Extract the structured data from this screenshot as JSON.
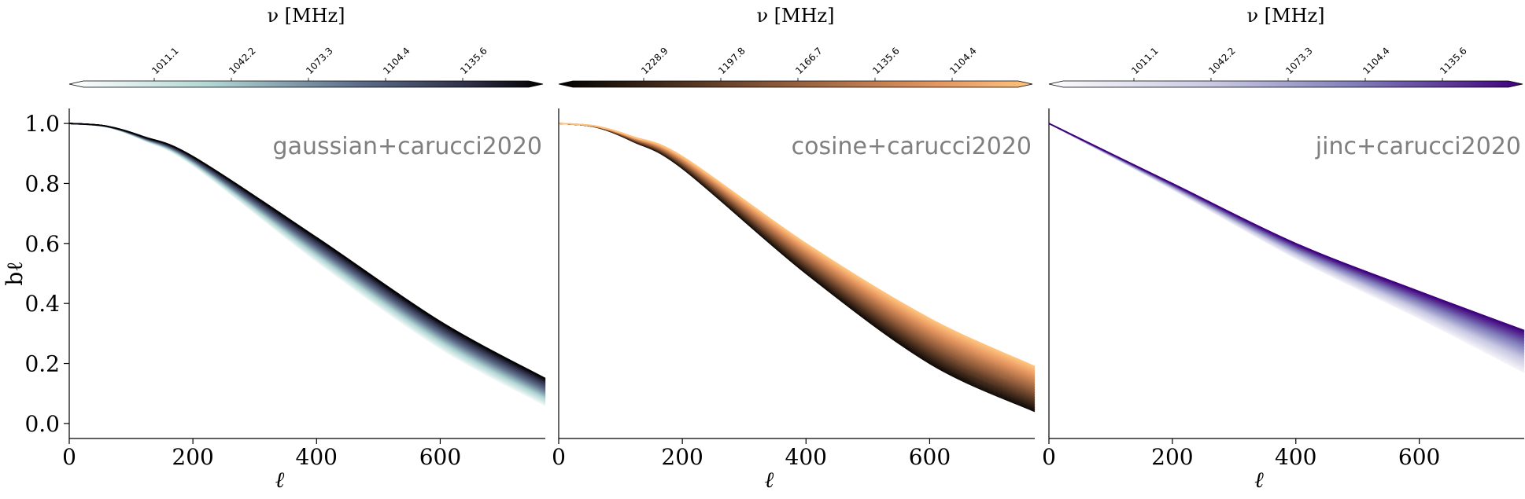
{
  "chart_data": [
    {
      "type": "line",
      "panel_label": "gaussian+carucci2020",
      "beam_model": "gaussian",
      "colormap": "bone_r",
      "colorbar": {
        "label": "ν [MHz]",
        "ticks": [
          "1011.1",
          "1042.2",
          "1073.3",
          "1104.4",
          "1135.6"
        ],
        "extend": "both"
      },
      "xlabel": "ℓ",
      "ylabel": "bℓ",
      "xlim": [
        0,
        770
      ],
      "ylim": [
        -0.05,
        1.05
      ],
      "xticks": [
        "0",
        "200",
        "400",
        "600"
      ],
      "yticks": [
        "0.0",
        "0.2",
        "0.4",
        "0.6",
        "0.8",
        "1.0"
      ],
      "freq_range_mhz": [
        980,
        1160
      ],
      "n_curves": 40,
      "series": [
        {
          "nu": 980,
          "x": [
            0,
            200,
            400,
            600,
            770
          ],
          "values": [
            1.0,
            0.86,
            0.54,
            0.25,
            0.06
          ]
        },
        {
          "nu": 1160,
          "x": [
            0,
            200,
            400,
            600,
            770
          ],
          "values": [
            1.0,
            0.89,
            0.62,
            0.34,
            0.15
          ]
        }
      ]
    },
    {
      "type": "line",
      "panel_label": "cosine+carucci2020",
      "beam_model": "cosine",
      "colormap": "copper",
      "colorbar": {
        "label": "ν [MHz]",
        "ticks": [
          "1228.9",
          "1197.8",
          "1166.7",
          "1135.6",
          "1104.4"
        ],
        "extend": "both"
      },
      "xlabel": "ℓ",
      "xlim": [
        0,
        770
      ],
      "ylim": [
        -0.05,
        1.05
      ],
      "xticks": [
        "0",
        "200",
        "400",
        "600"
      ],
      "freq_range_mhz": [
        1260,
        1080
      ],
      "n_curves": 40,
      "series": [
        {
          "nu": 1260,
          "x": [
            0,
            200,
            400,
            600,
            770
          ],
          "values": [
            1.0,
            0.85,
            0.5,
            0.2,
            0.04
          ]
        },
        {
          "nu": 1080,
          "x": [
            0,
            200,
            400,
            600,
            770
          ],
          "values": [
            1.0,
            0.89,
            0.6,
            0.35,
            0.19
          ]
        }
      ]
    },
    {
      "type": "line",
      "panel_label": "jinc+carucci2020",
      "beam_model": "jinc",
      "colormap": "Purples",
      "colorbar": {
        "label": "ν [MHz]",
        "ticks": [
          "1011.1",
          "1042.2",
          "1073.3",
          "1104.4",
          "1135.6"
        ],
        "extend": "both"
      },
      "xlabel": "ℓ",
      "xlim": [
        0,
        770
      ],
      "ylim": [
        -0.05,
        1.05
      ],
      "xticks": [
        "0",
        "200",
        "400",
        "600"
      ],
      "freq_range_mhz": [
        980,
        1160
      ],
      "n_curves": 40,
      "series": [
        {
          "nu": 980,
          "x": [
            0,
            200,
            400,
            600,
            770
          ],
          "values": [
            1.0,
            0.78,
            0.55,
            0.35,
            0.17
          ]
        },
        {
          "nu": 1160,
          "x": [
            0,
            200,
            400,
            600,
            770
          ],
          "values": [
            1.0,
            0.8,
            0.6,
            0.44,
            0.31
          ]
        }
      ]
    }
  ]
}
